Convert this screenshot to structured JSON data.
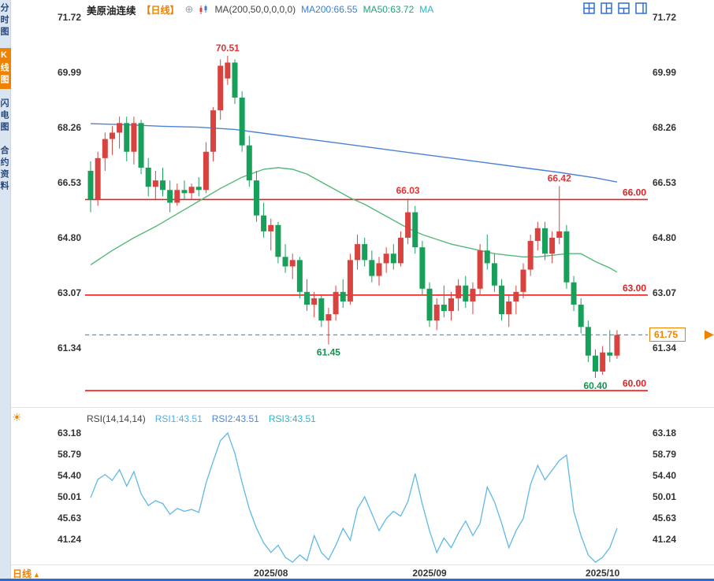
{
  "sidebar": {
    "items": [
      {
        "label": "分时图",
        "active": false
      },
      {
        "label": "K线图",
        "active": true
      },
      {
        "label": "闪电图",
        "active": false
      },
      {
        "label": "合约资料",
        "active": false
      }
    ]
  },
  "header": {
    "instrument": "美原油连续",
    "period_tag": "【日线】",
    "ma_formula": "MA(200,50,0,0,0,0)",
    "ma200": "MA200:66.55",
    "ma50": "MA50:63.72",
    "ma_extra": "MA"
  },
  "rsi_header": {
    "formula": "RSI(14,14,14)",
    "rsi1": "RSI1:43.51",
    "rsi2": "RSI2:43.51",
    "rsi3": "RSI3:43.51"
  },
  "footer": {
    "period_label": "日线"
  },
  "icons": {
    "add": "⊕",
    "sun": "☀",
    "up_arrow": "▲"
  },
  "colors": {
    "up": "#d8433f",
    "down": "#18a05a",
    "ma200": "#4a82d6",
    "ma50": "#55b878",
    "rsi_line": "#5fb8e6",
    "red_line": "#e02222",
    "dashed_line": "#3aa4d0",
    "ann_red": "#e03333",
    "ann_green": "#13934d",
    "axis_text": "#333333",
    "orange": "#f08200"
  },
  "chart_data": [
    {
      "type": "candlestick",
      "title": "美原油连续 日线 (US Crude Oil Continuous, daily)",
      "y_ticks": [
        71.72,
        69.99,
        68.26,
        66.53,
        64.8,
        63.07,
        61.34
      ],
      "hlines": [
        66.0,
        63.0,
        60.0
      ],
      "last_price": 61.75,
      "x_month_ticks": [
        {
          "label": "2025/08",
          "index": 25
        },
        {
          "label": "2025/09",
          "index": 47
        },
        {
          "label": "2025/10",
          "index": 71
        }
      ],
      "annotations": [
        {
          "text": "70.51",
          "index": 19,
          "price": 70.51,
          "pos": "above",
          "color": "red"
        },
        {
          "text": "66.03",
          "index": 44,
          "price": 66.03,
          "pos": "above",
          "color": "red"
        },
        {
          "text": "66.42",
          "index": 65,
          "price": 66.42,
          "pos": "above",
          "color": "red"
        },
        {
          "text": "61.45",
          "index": 33,
          "price": 61.45,
          "pos": "below",
          "color": "green"
        },
        {
          "text": "60.40",
          "index": 70,
          "price": 60.4,
          "pos": "below",
          "color": "green"
        }
      ],
      "candles": [
        [
          66.9,
          67.2,
          65.6,
          66.0
        ],
        [
          66.0,
          67.5,
          65.8,
          67.3
        ],
        [
          67.3,
          68.1,
          66.9,
          67.9
        ],
        [
          67.9,
          68.3,
          67.4,
          68.1
        ],
        [
          68.1,
          68.6,
          67.6,
          68.4
        ],
        [
          68.4,
          68.6,
          67.2,
          67.5
        ],
        [
          67.5,
          68.6,
          67.1,
          68.4
        ],
        [
          68.4,
          68.5,
          66.8,
          67.0
        ],
        [
          67.0,
          67.3,
          66.1,
          66.4
        ],
        [
          66.4,
          66.9,
          66.0,
          66.6
        ],
        [
          66.6,
          67.0,
          66.1,
          66.3
        ],
        [
          66.3,
          66.6,
          65.6,
          65.9
        ],
        [
          65.9,
          66.5,
          65.8,
          66.3
        ],
        [
          66.3,
          66.6,
          66.0,
          66.2
        ],
        [
          66.2,
          66.5,
          66.0,
          66.4
        ],
        [
          66.4,
          66.7,
          66.1,
          66.3
        ],
        [
          66.3,
          67.8,
          66.2,
          67.5
        ],
        [
          67.5,
          68.9,
          67.2,
          68.8
        ],
        [
          68.8,
          70.4,
          68.5,
          70.2
        ],
        [
          69.8,
          70.51,
          69.6,
          70.3
        ],
        [
          70.3,
          70.4,
          69.0,
          69.2
        ],
        [
          69.2,
          69.4,
          67.5,
          67.7
        ],
        [
          67.7,
          68.0,
          66.4,
          66.6
        ],
        [
          66.6,
          66.9,
          65.3,
          65.5
        ],
        [
          65.5,
          65.9,
          64.8,
          65.0
        ],
        [
          65.0,
          65.4,
          64.4,
          65.2
        ],
        [
          65.2,
          65.3,
          64.0,
          64.2
        ],
        [
          64.2,
          64.6,
          63.7,
          63.9
        ],
        [
          63.9,
          64.3,
          63.5,
          64.1
        ],
        [
          64.1,
          64.2,
          62.9,
          63.1
        ],
        [
          63.1,
          63.5,
          62.5,
          62.7
        ],
        [
          62.7,
          63.1,
          62.3,
          62.9
        ],
        [
          62.9,
          63.0,
          62.0,
          62.2
        ],
        [
          62.2,
          62.6,
          61.45,
          62.4
        ],
        [
          62.4,
          63.3,
          62.2,
          63.1
        ],
        [
          63.1,
          63.5,
          62.6,
          62.8
        ],
        [
          62.8,
          64.3,
          62.7,
          64.1
        ],
        [
          64.1,
          64.9,
          63.8,
          64.6
        ],
        [
          64.6,
          64.8,
          63.9,
          64.1
        ],
        [
          64.1,
          64.4,
          63.4,
          63.6
        ],
        [
          63.6,
          64.2,
          63.3,
          64.0
        ],
        [
          64.0,
          64.5,
          63.7,
          64.3
        ],
        [
          64.3,
          64.6,
          63.8,
          64.0
        ],
        [
          64.0,
          65.0,
          63.9,
          64.8
        ],
        [
          64.8,
          66.03,
          64.6,
          65.6
        ],
        [
          65.6,
          65.8,
          64.3,
          64.5
        ],
        [
          64.5,
          64.7,
          63.0,
          63.2
        ],
        [
          63.2,
          63.4,
          62.0,
          62.2
        ],
        [
          62.2,
          62.9,
          61.9,
          62.7
        ],
        [
          62.7,
          63.3,
          62.3,
          62.5
        ],
        [
          62.5,
          63.1,
          62.2,
          62.9
        ],
        [
          62.9,
          63.5,
          62.5,
          63.3
        ],
        [
          63.3,
          63.6,
          62.6,
          62.8
        ],
        [
          62.8,
          63.4,
          62.4,
          63.2
        ],
        [
          63.2,
          64.6,
          63.0,
          64.4
        ],
        [
          64.4,
          64.9,
          63.8,
          64.0
        ],
        [
          64.0,
          64.3,
          63.1,
          63.3
        ],
        [
          63.3,
          63.5,
          62.2,
          62.4
        ],
        [
          62.4,
          63.0,
          62.0,
          62.8
        ],
        [
          62.8,
          63.3,
          62.4,
          63.1
        ],
        [
          63.1,
          64.0,
          62.9,
          63.8
        ],
        [
          63.8,
          64.9,
          63.6,
          64.7
        ],
        [
          64.7,
          65.3,
          64.4,
          65.1
        ],
        [
          65.1,
          65.3,
          64.1,
          64.3
        ],
        [
          64.3,
          65.0,
          64.0,
          64.8
        ],
        [
          64.8,
          66.42,
          64.6,
          65.0
        ],
        [
          65.0,
          65.2,
          63.2,
          63.4
        ],
        [
          63.4,
          63.6,
          62.5,
          62.7
        ],
        [
          62.7,
          62.9,
          61.8,
          62.0
        ],
        [
          62.0,
          62.2,
          60.9,
          61.1
        ],
        [
          61.1,
          61.3,
          60.4,
          60.6
        ],
        [
          60.6,
          61.4,
          60.5,
          61.2
        ],
        [
          61.2,
          61.9,
          60.9,
          61.1
        ],
        [
          61.1,
          61.9,
          61.0,
          61.75
        ]
      ],
      "ma200_points": [
        [
          0,
          68.38
        ],
        [
          5,
          68.35
        ],
        [
          10,
          68.3
        ],
        [
          15,
          68.27
        ],
        [
          20,
          68.2
        ],
        [
          25,
          68.05
        ],
        [
          30,
          67.9
        ],
        [
          35,
          67.75
        ],
        [
          40,
          67.6
        ],
        [
          45,
          67.45
        ],
        [
          50,
          67.3
        ],
        [
          55,
          67.15
        ],
        [
          60,
          67.0
        ],
        [
          65,
          66.85
        ],
        [
          70,
          66.68
        ],
        [
          73,
          66.55
        ]
      ],
      "ma50_points": [
        [
          0,
          63.95
        ],
        [
          3,
          64.4
        ],
        [
          6,
          64.8
        ],
        [
          9,
          65.15
        ],
        [
          12,
          65.55
        ],
        [
          15,
          65.95
        ],
        [
          18,
          66.35
        ],
        [
          21,
          66.7
        ],
        [
          24,
          66.95
        ],
        [
          26,
          67.0
        ],
        [
          28,
          66.95
        ],
        [
          30,
          66.8
        ],
        [
          32,
          66.55
        ],
        [
          34,
          66.3
        ],
        [
          36,
          66.05
        ],
        [
          38,
          65.85
        ],
        [
          40,
          65.6
        ],
        [
          42,
          65.35
        ],
        [
          44,
          65.1
        ],
        [
          46,
          64.9
        ],
        [
          48,
          64.75
        ],
        [
          50,
          64.6
        ],
        [
          52,
          64.5
        ],
        [
          54,
          64.4
        ],
        [
          56,
          64.3
        ],
        [
          58,
          64.25
        ],
        [
          60,
          64.2
        ],
        [
          62,
          64.2
        ],
        [
          64,
          64.25
        ],
        [
          66,
          64.3
        ],
        [
          68,
          64.3
        ],
        [
          70,
          64.05
        ],
        [
          72,
          63.85
        ],
        [
          73,
          63.72
        ]
      ]
    },
    {
      "type": "line",
      "name": "RSI(14,14,14)",
      "y_ticks": [
        63.18,
        58.79,
        54.4,
        50.01,
        45.63,
        41.24
      ],
      "values": [
        49.8,
        53.6,
        54.6,
        53.4,
        55.6,
        52.2,
        55.2,
        50.6,
        48.2,
        49.2,
        48.6,
        46.4,
        47.6,
        47.0,
        47.4,
        46.8,
        52.8,
        57.4,
        61.6,
        63.18,
        59.0,
        53.0,
        47.5,
        43.5,
        40.5,
        38.5,
        40.0,
        37.5,
        36.5,
        38.0,
        36.8,
        42.0,
        38.5,
        37.0,
        40.0,
        43.5,
        41.0,
        47.5,
        50.0,
        46.5,
        43.0,
        45.5,
        47.0,
        46.0,
        49.0,
        54.8,
        48.5,
        43.0,
        38.5,
        41.5,
        39.5,
        42.5,
        45.0,
        42.0,
        44.5,
        52.0,
        49.0,
        44.5,
        39.5,
        43.0,
        45.5,
        52.5,
        56.5,
        53.5,
        55.5,
        57.5,
        58.6,
        47.0,
        42.0,
        38.0,
        36.5,
        37.5,
        39.5,
        43.51
      ]
    }
  ]
}
